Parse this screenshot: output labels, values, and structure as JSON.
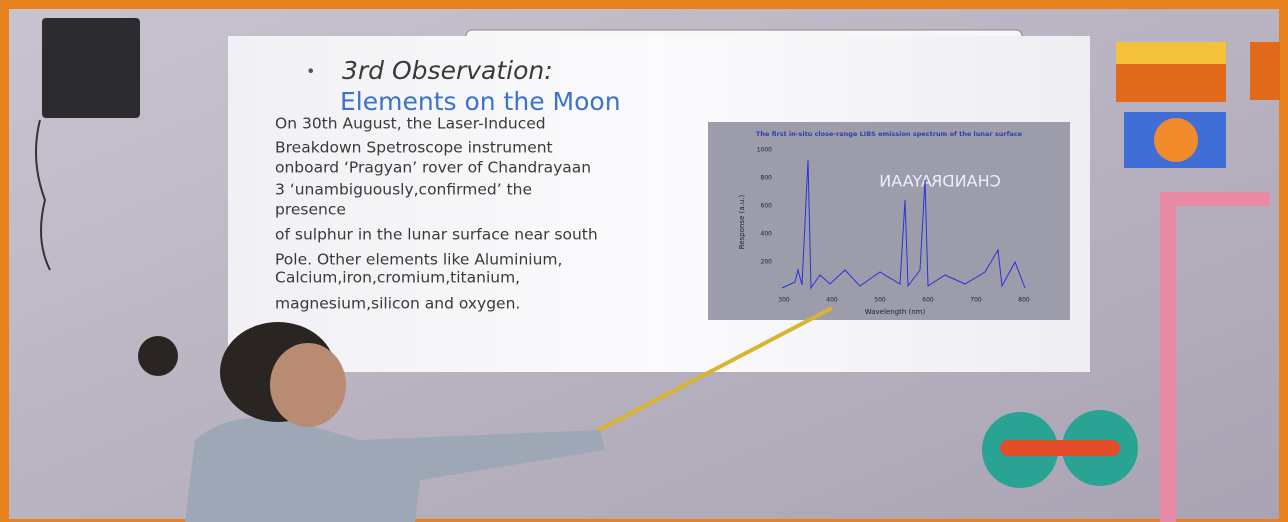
{
  "slide": {
    "bullet_title": "3rd Observation:",
    "subtitle": "Elements on the Moon",
    "body_lines": [
      "On 30th August, the Laser-Induced",
      "Breakdown Spetroscope instrument",
      "onboard ‘Pragyan’ rover of Chandrayaan",
      "3  ‘unambiguously,confirmed’ the",
      "presence",
      "of  sulphur in the lunar surface near south",
      "Pole. Other elements like Aluminium,",
      "Calcium,iron,cromium,titanium,",
      "magnesium,silicon and oxygen."
    ],
    "inset": {
      "title": "The first in-situ close-range LIBS emission spectrum of the lunar surface",
      "y_label": "Response (a.u.)",
      "x_label": "Wavelength (nm)",
      "watermark": "CHANDRAYAAN",
      "y_ticks": [
        "1000",
        "800",
        "600",
        "400",
        "200"
      ],
      "x_ticks": [
        "300",
        "400",
        "500",
        "600",
        "700",
        "800"
      ]
    }
  }
}
